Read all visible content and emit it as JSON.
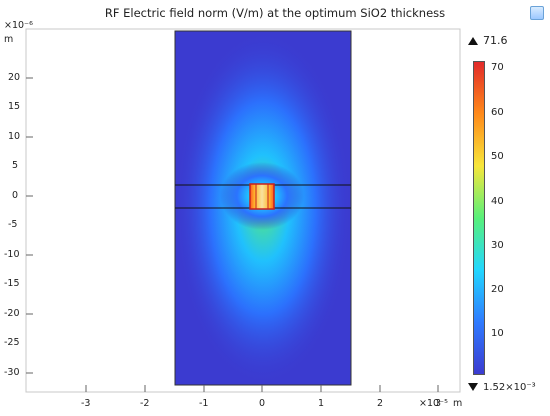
{
  "title": "RF Electric field norm (V/m) at the optimum SiO2 thickness",
  "y_unit_exp": "×10⁻⁶",
  "y_unit": "m",
  "x_unit_exp": "×10⁻⁵",
  "x_unit": "m",
  "y_ticks": [
    "20",
    "15",
    "10",
    "5",
    "0",
    "-5",
    "-10",
    "-15",
    "-20",
    "-25",
    "-30"
  ],
  "x_ticks": [
    "-3",
    "-2",
    "-1",
    "0",
    "1",
    "2",
    "3"
  ],
  "colorbar": {
    "max_label": "71.6",
    "min_label": "1.52×10⁻³",
    "ticks": [
      "70",
      "60",
      "50",
      "40",
      "30",
      "20",
      "10"
    ],
    "colors": [
      "#3b3bd0",
      "#2f7bff",
      "#22d7ff",
      "#58f07a",
      "#f7e63b",
      "#ff8a1a",
      "#e22a2a"
    ]
  },
  "toolbar": {
    "icon": "corner-action-icon"
  },
  "chart_data": {
    "type": "heatmap",
    "title": "RF Electric field norm (V/m) at the optimum SiO2 thickness",
    "xlabel": "",
    "ylabel": "",
    "x_unit": "m (×10⁻⁵)",
    "y_unit": "m (×10⁻⁶)",
    "x_range": [
      -3.6,
      3.6
    ],
    "y_range": [
      -33,
      26
    ],
    "value_range": [
      0.00152,
      71.6
    ],
    "colorbar_ticks": [
      10,
      20,
      30,
      40,
      50,
      60,
      70
    ]
  }
}
